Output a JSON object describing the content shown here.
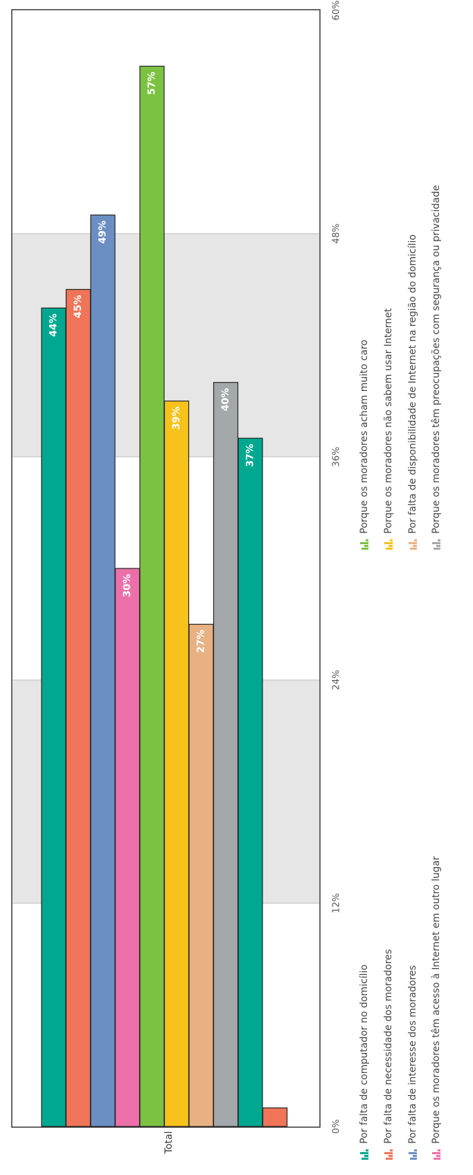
{
  "chart_data": {
    "type": "bar",
    "orientation": "horizontal-rotated",
    "category": "Total",
    "value_axis": {
      "min": 0,
      "max": 60,
      "ticks": [
        "0%",
        "12%",
        "24%",
        "36%",
        "48%",
        "60%"
      ],
      "tick_values": [
        0,
        12,
        24,
        36,
        48,
        60
      ]
    },
    "grid": true,
    "alternating_bands": true,
    "legend_position": "bottom",
    "series": [
      {
        "name": "Por falta de computador no domicílio",
        "value": 44,
        "label": "44%",
        "color": "#00a88f",
        "label_color": "#ffffff"
      },
      {
        "name": "Por falta de necessidade dos moradores",
        "value": 45,
        "label": "45%",
        "color": "#ef7458",
        "label_color": "#ffffff"
      },
      {
        "name": "Por falta de interesse dos moradores",
        "value": 49,
        "label": "49%",
        "color": "#6b8fc2",
        "label_color": "#ffffff"
      },
      {
        "name": "Porque os moradores têm acesso à Internet em outro lugar",
        "value": 30,
        "label": "30%",
        "color": "#ec6faa",
        "label_color": "#ffffff"
      },
      {
        "name": "Porque os moradores acham muito caro",
        "value": 57,
        "label": "57%",
        "color": "#7cc242",
        "label_color": "#ffffff"
      },
      {
        "name": "Porque os moradores não sabem usar Internet",
        "value": 39,
        "label": "39%",
        "color": "#f7c21b",
        "label_color": "#ffffff"
      },
      {
        "name": "Por falta de disponibilidade de Internet na região do domicílio",
        "value": 27,
        "label": "27%",
        "color": "#e7b183",
        "label_color": "#ffffff"
      },
      {
        "name": "Porque os moradores têm preocupações com segurança ou privacidade",
        "value": 40,
        "label": "40%",
        "color": "#a5a8aa",
        "label_color": "#ffffff"
      },
      {
        "name": "",
        "value": 37,
        "label": "37%",
        "color": "#00a88f",
        "label_color": "#ffffff"
      },
      {
        "name": "",
        "value": 1,
        "label": "",
        "color": "#ef7458",
        "label_color": "#ffffff"
      }
    ]
  }
}
